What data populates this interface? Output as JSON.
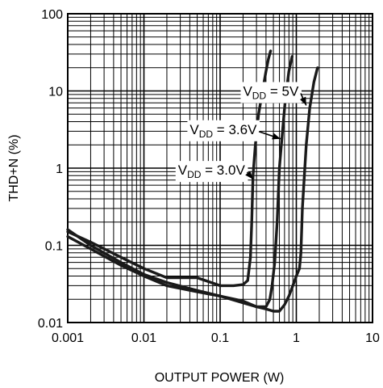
{
  "chart_data": {
    "type": "line",
    "xscale": "log",
    "yscale": "log",
    "xlim": [
      0.001,
      10
    ],
    "ylim": [
      0.01,
      100
    ],
    "grid": true,
    "xlabel": "OUTPUT POWER (W)",
    "ylabel": "THD+N (%)",
    "xticks": [
      "0.001",
      "0.01",
      "0.1",
      "1",
      "10"
    ],
    "yticks": [
      "0.01",
      "0.1",
      "1",
      "10",
      "100"
    ],
    "series": [
      {
        "name": "VDD = 3.0V",
        "label_main": "V",
        "label_sub": "DD",
        "label_rest": " = 3.0V",
        "x": [
          0.001,
          0.002,
          0.005,
          0.01,
          0.02,
          0.05,
          0.1,
          0.15,
          0.2,
          0.23,
          0.25,
          0.26,
          0.27,
          0.29,
          0.32,
          0.36,
          0.4,
          0.43,
          0.46
        ],
        "y": [
          0.15,
          0.11,
          0.07,
          0.05,
          0.038,
          0.038,
          0.03,
          0.03,
          0.031,
          0.035,
          0.07,
          0.2,
          0.8,
          2.0,
          5.0,
          10.0,
          18.0,
          26.0,
          33.0
        ]
      },
      {
        "name": "VDD = 3.6V",
        "label_main": "V",
        "label_sub": "DD",
        "label_rest": " = 3.6V",
        "x": [
          0.001,
          0.002,
          0.005,
          0.01,
          0.02,
          0.05,
          0.1,
          0.2,
          0.3,
          0.4,
          0.45,
          0.48,
          0.52,
          0.56,
          0.6,
          0.66,
          0.72,
          0.8,
          0.88
        ],
        "y": [
          0.13,
          0.09,
          0.055,
          0.04,
          0.03,
          0.025,
          0.022,
          0.019,
          0.016,
          0.016,
          0.02,
          0.03,
          0.06,
          0.2,
          1.0,
          3.0,
          8.0,
          18.0,
          28.0
        ]
      },
      {
        "name": "VDD = 5V",
        "label_main": "V",
        "label_sub": "DD",
        "label_rest": " = 5V",
        "x": [
          0.001,
          0.002,
          0.005,
          0.01,
          0.02,
          0.05,
          0.1,
          0.2,
          0.3,
          0.4,
          0.5,
          0.6,
          0.7,
          0.8,
          0.9,
          1.0,
          1.1,
          1.15,
          1.2,
          1.35,
          1.5,
          1.7,
          1.9
        ],
        "y": [
          0.16,
          0.1,
          0.06,
          0.042,
          0.033,
          0.026,
          0.022,
          0.018,
          0.016,
          0.015,
          0.014,
          0.014,
          0.017,
          0.022,
          0.03,
          0.04,
          0.05,
          0.08,
          0.3,
          2.0,
          6.0,
          13.0,
          20.0
        ]
      }
    ],
    "annotations": [
      {
        "series": 2,
        "text_main": "V",
        "text_sub": "DD",
        "text_rest": " = 5V",
        "label_at": [
          0.2,
          10
        ],
        "arrow_to": [
          1.35,
          6.5
        ]
      },
      {
        "series": 1,
        "text_main": "V",
        "text_sub": "DD",
        "text_rest": " = 3.6V",
        "label_at": [
          0.04,
          3.2
        ],
        "arrow_to": [
          0.62,
          2.4
        ]
      },
      {
        "series": 0,
        "text_main": "V",
        "text_sub": "DD",
        "text_rest": " = 3.0V",
        "label_at": [
          0.028,
          0.95
        ],
        "arrow_to": [
          0.27,
          0.72
        ]
      }
    ]
  }
}
